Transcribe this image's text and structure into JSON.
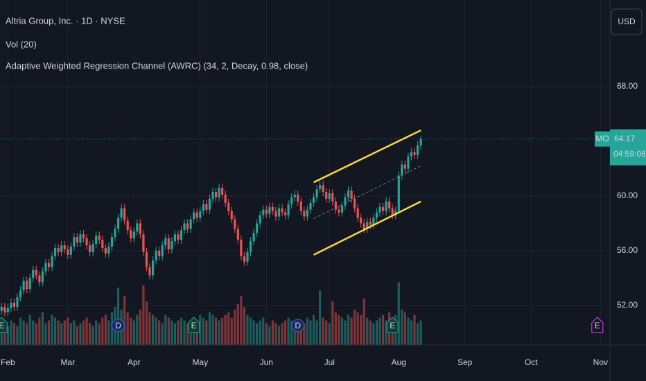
{
  "chart_data": {
    "type": "candlestick",
    "title": "Altria Group, Inc. · 1D · NYSE",
    "indicators": [
      "Vol (20)",
      "Adaptive Weighted Regression Channel (AWRC) (34, 2, Decay, 0.98, close)"
    ],
    "currency": "USD",
    "symbol": "MO",
    "countdown": "04:59:08",
    "up_color": "#26a69a",
    "down_color": "#ef5350",
    "channel_color": "#fdd835",
    "grid": true,
    "open": [
      51.4,
      51.6,
      51.9,
      51.5,
      51.8,
      52.2,
      51.9,
      52.6,
      53.1,
      53.8,
      53.2,
      54.0,
      54.6,
      54.2,
      53.7,
      54.5,
      55.1,
      54.8,
      55.6,
      56.2,
      55.9,
      56.4,
      56.1,
      55.7,
      56.3,
      57.0,
      56.6,
      57.2,
      56.9,
      56.4,
      55.9,
      56.5,
      57.1,
      56.8,
      56.2,
      55.8,
      56.3,
      57.0,
      57.6,
      58.4,
      59.1,
      58.2,
      57.5,
      56.9,
      57.4,
      58.0,
      57.2,
      55.9,
      54.8,
      54.2,
      55.3,
      56.0,
      55.6,
      56.4,
      56.9,
      56.1,
      56.7,
      57.2,
      56.8,
      57.5,
      58.0,
      57.6,
      58.3,
      58.8,
      58.4,
      58.9,
      59.4,
      59.0,
      59.8,
      60.3,
      59.9,
      60.6,
      60.1,
      59.5,
      58.9,
      58.3,
      57.6,
      56.8,
      55.6,
      55.2,
      55.9,
      56.7,
      57.3,
      58.0,
      58.6,
      59.0,
      58.7,
      59.2,
      58.9,
      58.5,
      59.1,
      58.8,
      58.6,
      59.4,
      59.9,
      60.1,
      59.6,
      58.9,
      58.5,
      59.0,
      59.5,
      59.9,
      60.5,
      60.8,
      60.3,
      59.8,
      60.2,
      59.6,
      59.0,
      58.8,
      59.3,
      59.9,
      60.4,
      59.8,
      59.1,
      58.4,
      58.0,
      57.6,
      58.1,
      57.9,
      58.4,
      58.8,
      59.2,
      58.9,
      59.6,
      59.1,
      58.6,
      58.9,
      61.5,
      62.3,
      62.0,
      62.9,
      63.2,
      63.0,
      63.7
    ],
    "high": [
      51.9,
      52.2,
      52.2,
      52.1,
      52.5,
      52.5,
      52.9,
      53.4,
      54.1,
      54.1,
      54.3,
      54.9,
      54.9,
      54.5,
      54.8,
      55.4,
      55.4,
      55.9,
      56.5,
      56.5,
      56.7,
      56.7,
      56.4,
      56.6,
      57.3,
      57.3,
      57.5,
      57.5,
      57.2,
      56.7,
      56.8,
      57.4,
      57.4,
      57.1,
      56.5,
      56.6,
      57.3,
      57.9,
      58.7,
      59.4,
      59.4,
      58.5,
      57.8,
      57.7,
      58.3,
      58.3,
      57.5,
      56.2,
      55.1,
      55.6,
      56.3,
      56.3,
      56.7,
      57.2,
      57.2,
      57.0,
      57.5,
      57.5,
      57.8,
      58.3,
      58.3,
      58.6,
      59.1,
      59.1,
      59.2,
      59.7,
      59.7,
      60.1,
      60.6,
      60.6,
      60.9,
      60.9,
      60.4,
      59.8,
      59.2,
      58.6,
      57.9,
      57.1,
      55.9,
      56.2,
      57.0,
      57.6,
      58.3,
      58.9,
      59.3,
      59.3,
      59.5,
      59.5,
      59.2,
      59.4,
      59.4,
      59.1,
      59.7,
      60.2,
      60.4,
      60.4,
      59.9,
      59.2,
      59.3,
      59.8,
      60.2,
      60.8,
      61.1,
      61.1,
      60.6,
      60.5,
      60.5,
      59.9,
      59.3,
      59.6,
      60.2,
      60.7,
      60.7,
      60.1,
      59.4,
      58.7,
      58.3,
      58.4,
      58.4,
      58.7,
      59.1,
      59.5,
      59.5,
      59.9,
      59.9,
      59.4,
      59.2,
      61.8,
      62.6,
      62.6,
      63.2,
      63.5,
      63.5,
      64.0,
      64.4
    ],
    "low": [
      51.1,
      51.3,
      51.2,
      51.2,
      51.5,
      51.6,
      51.6,
      52.3,
      52.8,
      52.9,
      52.9,
      53.7,
      53.9,
      53.4,
      53.4,
      54.2,
      54.5,
      54.5,
      55.3,
      55.6,
      55.6,
      55.8,
      55.4,
      55.4,
      56.0,
      56.3,
      56.3,
      56.6,
      56.1,
      55.6,
      55.6,
      56.2,
      56.5,
      55.9,
      55.5,
      55.5,
      56.0,
      56.7,
      57.3,
      58.1,
      57.9,
      57.2,
      56.6,
      56.6,
      57.1,
      56.9,
      55.6,
      54.5,
      53.9,
      53.9,
      55.0,
      55.3,
      55.3,
      56.1,
      55.8,
      55.8,
      56.4,
      56.5,
      56.5,
      57.2,
      57.3,
      57.3,
      58.0,
      58.1,
      58.1,
      58.6,
      58.7,
      58.7,
      59.5,
      59.6,
      59.6,
      59.8,
      59.2,
      58.6,
      58.0,
      57.3,
      56.5,
      55.3,
      54.9,
      54.9,
      55.6,
      56.4,
      57.0,
      57.7,
      58.3,
      58.4,
      58.4,
      58.6,
      58.2,
      58.2,
      58.5,
      58.3,
      58.3,
      59.1,
      59.6,
      59.3,
      58.6,
      58.2,
      58.2,
      58.7,
      59.2,
      59.6,
      60.2,
      60.0,
      59.5,
      59.5,
      59.3,
      58.7,
      58.5,
      58.5,
      59.0,
      59.6,
      59.5,
      58.8,
      58.1,
      57.7,
      57.3,
      57.3,
      57.6,
      57.6,
      58.1,
      58.5,
      58.6,
      58.6,
      58.8,
      58.3,
      58.3,
      58.8,
      61.2,
      61.7,
      61.7,
      62.6,
      62.7,
      62.7,
      63.4
    ],
    "close": [
      51.6,
      51.9,
      51.5,
      51.8,
      52.2,
      51.9,
      52.6,
      53.1,
      53.8,
      53.2,
      54.0,
      54.6,
      54.2,
      53.7,
      54.5,
      55.1,
      54.8,
      55.6,
      56.2,
      55.9,
      56.4,
      56.1,
      55.7,
      56.3,
      57.0,
      56.6,
      57.2,
      56.9,
      56.4,
      55.9,
      56.5,
      57.1,
      56.8,
      56.2,
      55.8,
      56.3,
      57.0,
      57.6,
      58.4,
      59.1,
      58.2,
      57.5,
      56.9,
      57.4,
      58.0,
      57.2,
      55.9,
      54.8,
      54.2,
      55.3,
      56.0,
      55.6,
      56.4,
      56.9,
      56.1,
      56.7,
      57.2,
      56.8,
      57.5,
      58.0,
      57.6,
      58.3,
      58.8,
      58.4,
      58.9,
      59.4,
      59.0,
      59.8,
      60.3,
      59.9,
      60.6,
      60.1,
      59.5,
      58.9,
      58.3,
      57.6,
      56.8,
      55.6,
      55.2,
      55.9,
      56.7,
      57.3,
      58.0,
      58.6,
      59.0,
      58.7,
      59.2,
      58.9,
      58.5,
      59.1,
      58.8,
      58.6,
      59.4,
      59.9,
      60.1,
      59.6,
      58.9,
      58.5,
      59.0,
      59.5,
      59.9,
      60.5,
      60.8,
      60.3,
      59.8,
      60.2,
      59.6,
      59.0,
      58.8,
      59.3,
      59.9,
      60.4,
      59.8,
      59.1,
      58.4,
      58.0,
      57.6,
      58.1,
      57.9,
      58.4,
      58.8,
      59.2,
      58.9,
      59.6,
      59.1,
      58.6,
      58.9,
      61.5,
      62.3,
      62.0,
      62.9,
      63.2,
      63.0,
      63.7,
      64.17
    ],
    "volume": [
      7,
      8,
      6,
      7,
      9,
      8,
      7,
      10,
      9,
      8,
      11,
      9,
      8,
      10,
      12,
      8,
      9,
      11,
      10,
      9,
      8,
      9,
      10,
      8,
      9,
      7,
      8,
      9,
      10,
      8,
      7,
      9,
      8,
      10,
      11,
      9,
      12,
      14,
      21,
      13,
      18,
      12,
      10,
      9,
      11,
      13,
      22,
      16,
      12,
      11,
      10,
      9,
      8,
      11,
      10,
      9,
      8,
      9,
      10,
      9,
      8,
      9,
      10,
      9,
      11,
      10,
      9,
      12,
      11,
      10,
      9,
      10,
      11,
      12,
      10,
      13,
      15,
      18,
      14,
      11,
      10,
      9,
      8,
      9,
      10,
      8,
      7,
      9,
      8,
      7,
      8,
      9,
      10,
      9,
      8,
      7,
      9,
      8,
      10,
      9,
      11,
      9,
      20,
      10,
      9,
      8,
      16,
      12,
      11,
      10,
      9,
      11,
      10,
      13,
      12,
      11,
      17,
      10,
      9,
      8,
      9,
      10,
      11,
      9,
      12,
      10,
      11,
      23,
      13,
      12,
      10,
      9,
      11,
      8,
      9
    ],
    "vlim": [
      0,
      30
    ],
    "channel": {
      "x": [
        100,
        134
      ],
      "upper": [
        61.0,
        64.8
      ],
      "middle": [
        58.35,
        62.2
      ],
      "lower": [
        55.7,
        59.6
      ]
    },
    "events": [
      {
        "x": 1,
        "label": "E"
      },
      {
        "x": 38,
        "label": "D"
      },
      {
        "x": 62,
        "label": "E"
      },
      {
        "x": 95,
        "label": "D"
      },
      {
        "x": 125,
        "label": "E"
      },
      {
        "x": 190,
        "label": "E"
      }
    ],
    "xlim": [
      0.5,
      194
    ],
    "xticks": [
      {
        "value": 3,
        "label": "Feb"
      },
      {
        "value": 22,
        "label": "Mar"
      },
      {
        "value": 43,
        "label": "Apr"
      },
      {
        "value": 64,
        "label": "May"
      },
      {
        "value": 85,
        "label": "Jun"
      },
      {
        "value": 105,
        "label": "Jul"
      },
      {
        "value": 127,
        "label": "Aug"
      },
      {
        "value": 148,
        "label": "Sep"
      },
      {
        "value": 169,
        "label": "Oct"
      },
      {
        "value": 191,
        "label": "Nov"
      }
    ],
    "ylim": [
      49.11,
      74.33
    ],
    "yticks": [
      {
        "value": 52,
        "label": "52.00"
      },
      {
        "value": 56,
        "label": "56.00"
      },
      {
        "value": 60,
        "label": "60.00"
      },
      {
        "value": 68,
        "label": "68.00"
      }
    ]
  }
}
